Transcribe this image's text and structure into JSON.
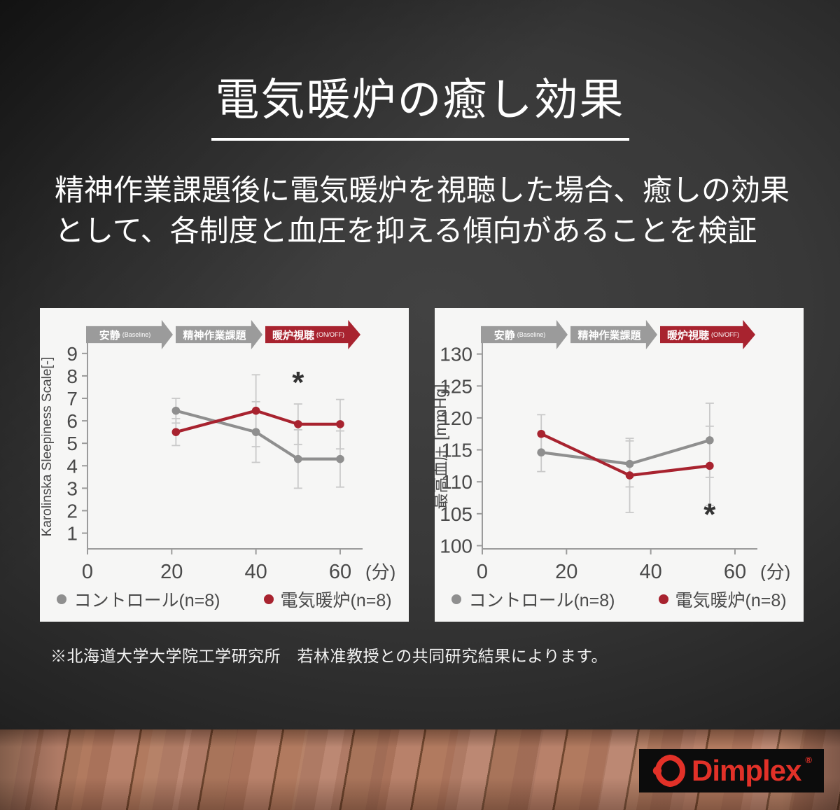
{
  "slide": {
    "title": "電気暖炉の癒し効果",
    "body_line1": "精神作業課題後に電気暖炉を視聴した場合、癒しの効果",
    "body_line2": "として、各制度と血圧を抑える傾向があることを検証",
    "footnote": "※北海道大学大学院工学研究所　若林准教授との共同研究結果によります。"
  },
  "phases": {
    "rest": "安静",
    "rest_sub": "(Baseline)",
    "task": "精神作業課題",
    "fireplace": "暖炉視聴",
    "fireplace_sub": "(ON/OFF)"
  },
  "legend": {
    "control": "コントロール(n=8)",
    "fireplace": "電気暖炉(n=8)"
  },
  "colors": {
    "control": "#8f8f8f",
    "fireplace": "#a8232f",
    "errbar": "#c9c9c9",
    "axis": "#9b9b9b",
    "tick_label": "#4a4a4a",
    "annotation": "#333333",
    "arrow_gray": "#9b9b9b",
    "arrow_red": "#a8232f",
    "panel_bg": "#f6f6f5",
    "logo_red": "#e23128",
    "logo_bg": "#0c0c0c"
  },
  "logo": {
    "text": "Dimplex",
    "reg": "®"
  },
  "chart_data": [
    {
      "type": "line",
      "title": "Karolinska Sleepiness Scale (left panel)",
      "ylabel": "Karolinska Sleepiness Scale[-]",
      "ylabel_fs": 19,
      "xlabel": "(分)",
      "x_ticks": [
        0,
        20,
        40,
        60
      ],
      "y_ticks": [
        1,
        2,
        3,
        4,
        5,
        6,
        7,
        8,
        9
      ],
      "xlim": [
        0,
        63
      ],
      "ylim": [
        0.3,
        9.4
      ],
      "grid": false,
      "legend_position": "bottom",
      "series": [
        {
          "name": "コントロール(n=8)",
          "color": "#8f8f8f",
          "x": [
            21,
            40,
            50,
            60
          ],
          "y": [
            6.45,
            5.5,
            4.3,
            4.3
          ],
          "err": [
            0.55,
            1.35,
            1.3,
            1.25
          ]
        },
        {
          "name": "電気暖炉(n=8)",
          "color": "#a8232f",
          "x": [
            21,
            40,
            50,
            60
          ],
          "y": [
            5.5,
            6.45,
            5.85,
            5.85
          ],
          "err": [
            0.6,
            1.6,
            0.9,
            1.1
          ]
        }
      ],
      "annotation": {
        "text": "*",
        "x": 50,
        "y": 7.25
      }
    },
    {
      "type": "line",
      "title": "最高血圧 (right panel)",
      "ylabel": "最高血圧 [mmHg]",
      "ylabel_fs": 23,
      "xlabel": "(分)",
      "x_ticks": [
        0,
        20,
        40,
        60
      ],
      "y_ticks": [
        100,
        105,
        110,
        115,
        120,
        125,
        130
      ],
      "xlim": [
        0,
        63
      ],
      "ylim": [
        99.5,
        131.5
      ],
      "grid": false,
      "legend_position": "bottom",
      "series": [
        {
          "name": "コントロール(n=8)",
          "color": "#8f8f8f",
          "x": [
            14,
            35,
            54
          ],
          "y": [
            114.6,
            112.8,
            116.5
          ],
          "err": [
            3.0,
            3.6,
            5.8
          ]
        },
        {
          "name": "電気暖炉(n=8)",
          "color": "#a8232f",
          "x": [
            14,
            35,
            54
          ],
          "y": [
            117.5,
            111.0,
            112.5
          ],
          "err": [
            3.0,
            5.8,
            6.2
          ]
        }
      ],
      "annotation": {
        "text": "*",
        "x": 54,
        "y": 103.3
      }
    }
  ]
}
